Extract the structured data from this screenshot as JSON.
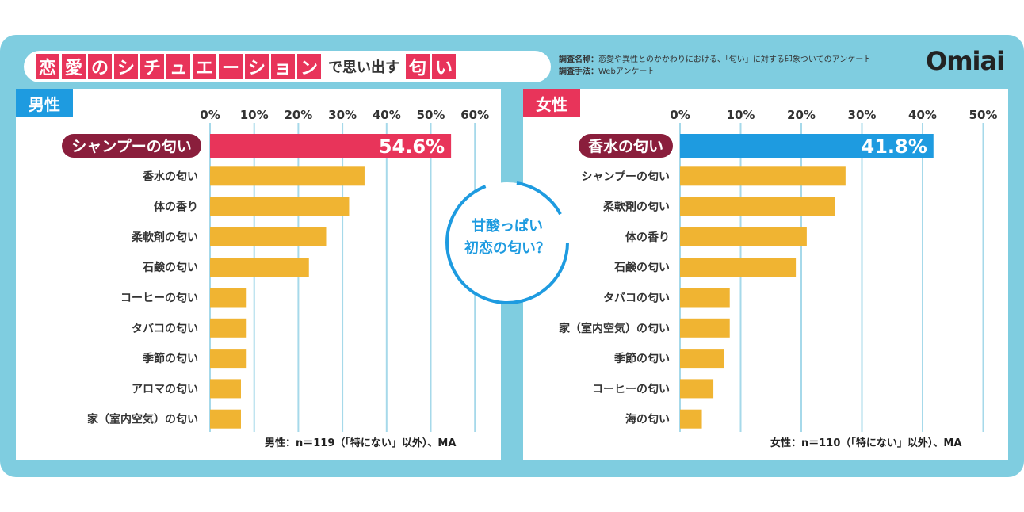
{
  "header": {
    "title_chars": [
      "恋",
      "愛",
      "の",
      "シ",
      "チ",
      "ュ",
      "エ",
      "ー",
      "シ",
      "ョ",
      "ン"
    ],
    "title_mid": "で思い出す",
    "title_end_chars": [
      "匂",
      "い"
    ],
    "survey_name_label": "調査名称：",
    "survey_name": "恋愛や異性とのかかわりにおける、「匂い」に対する印象ついてのアンケート",
    "survey_method_label": "調査手法：",
    "survey_method": "Webアンケート",
    "logo": "Omiai"
  },
  "center_note": [
    "甘酸っぱい",
    "初恋の匂い？"
  ],
  "colors": {
    "male_top": "#e8345a",
    "female_top": "#1e9be0",
    "bar": "#f0b432",
    "grid": "#a6d9ea",
    "male_label_bg": "#8a1e3c",
    "female_label_bg": "#8a1e3c"
  },
  "chart_data": [
    {
      "type": "bar",
      "orientation": "horizontal",
      "group_label": "男性",
      "x_ticks": [
        "0%",
        "10%",
        "20%",
        "30%",
        "40%",
        "50%",
        "60%"
      ],
      "xlim": [
        0,
        60
      ],
      "categories": [
        "シャンプーの匂い",
        "香水の匂い",
        "体の香り",
        "柔軟剤の匂い",
        "石鹸の匂い",
        "コーヒーの匂い",
        "タバコの匂い",
        "季節の匂い",
        "アロマの匂い",
        "家（室内空気）の匂い"
      ],
      "values": [
        54.6,
        35,
        31.5,
        26.3,
        22.4,
        8.3,
        8.3,
        8.3,
        7.0,
        7.0
      ],
      "top_value_label": "54.6%",
      "note": "男性：n＝119（「特にない」以外）、MA"
    },
    {
      "type": "bar",
      "orientation": "horizontal",
      "group_label": "女性",
      "x_ticks": [
        "0%",
        "10%",
        "20%",
        "30%",
        "40%",
        "50%"
      ],
      "xlim": [
        0,
        50
      ],
      "categories": [
        "香水の匂い",
        "シャンプーの匂い",
        "柔軟剤の匂い",
        "体の香り",
        "石鹸の匂い",
        "タバコの匂い",
        "家（室内空気）の匂い",
        "季節の匂い",
        "コーヒーの匂い",
        "海の匂い"
      ],
      "values": [
        41.8,
        27.3,
        25.5,
        20.9,
        19.1,
        8.2,
        8.2,
        7.3,
        5.5,
        3.6
      ],
      "top_value_label": "41.8%",
      "note": "女性：n＝110（「特にない」以外）、MA"
    }
  ]
}
